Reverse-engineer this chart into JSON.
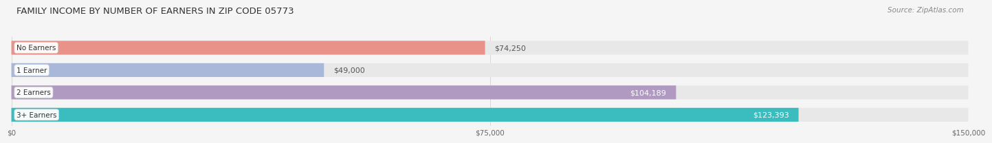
{
  "title": "FAMILY INCOME BY NUMBER OF EARNERS IN ZIP CODE 05773",
  "source": "Source: ZipAtlas.com",
  "categories": [
    "No Earners",
    "1 Earner",
    "2 Earners",
    "3+ Earners"
  ],
  "values": [
    74250,
    49000,
    104189,
    123393
  ],
  "bar_colors": [
    "#E8928A",
    "#A9B8D8",
    "#B09AC2",
    "#3BBCBE"
  ],
  "bar_bg_color": "#E8E8E8",
  "value_labels": [
    "$74,250",
    "$49,000",
    "$104,189",
    "$123,393"
  ],
  "label_inside": [
    false,
    false,
    true,
    true
  ],
  "xlim": [
    0,
    150000
  ],
  "xticks": [
    0,
    75000,
    150000
  ],
  "xtick_labels": [
    "$0",
    "$75,000",
    "$150,000"
  ],
  "background_color": "#F5F5F5",
  "bar_height": 0.62,
  "title_fontsize": 9.5,
  "source_fontsize": 7.5,
  "label_fontsize": 8,
  "category_fontsize": 7.5
}
